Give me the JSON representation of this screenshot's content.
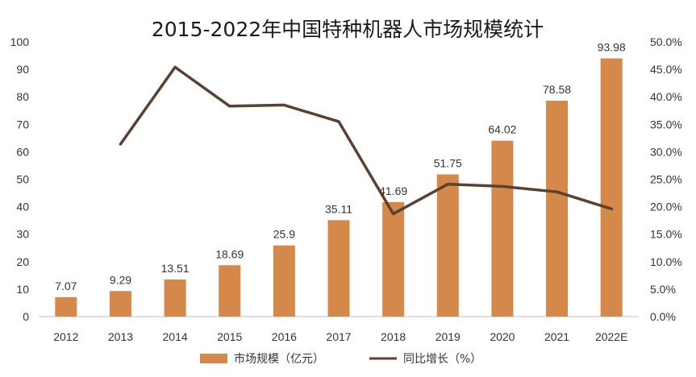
{
  "chart_data": {
    "type": "bar",
    "title": "2015-2022年中国特种机器人市场规模统计",
    "categories": [
      "2012",
      "2013",
      "2014",
      "2015",
      "2016",
      "2017",
      "2018",
      "2019",
      "2020",
      "2021",
      "2022E"
    ],
    "series": [
      {
        "name": "市场规模（亿元）",
        "type": "bar",
        "axis": "left",
        "color": "#D4894A",
        "values": [
          7.07,
          9.29,
          13.51,
          18.69,
          25.9,
          35.11,
          41.69,
          51.75,
          64.02,
          78.58,
          93.98
        ],
        "labels": [
          "7.07",
          "9.29",
          "13.51",
          "18.69",
          "25.9",
          "35.11",
          "41.69",
          "51.75",
          "64.02",
          "78.58",
          "93.98"
        ]
      },
      {
        "name": "同比增长（%）",
        "type": "line",
        "axis": "right",
        "color": "#5A4132",
        "values": [
          null,
          31.4,
          45.4,
          38.3,
          38.5,
          35.5,
          18.7,
          24.1,
          23.7,
          22.7,
          19.6
        ]
      }
    ],
    "y_left": {
      "min": 0,
      "max": 100,
      "ticks": [
        "0",
        "10",
        "20",
        "30",
        "40",
        "50",
        "60",
        "70",
        "80",
        "90",
        "100"
      ]
    },
    "y_right": {
      "min": 0,
      "max": 50,
      "ticks": [
        "0.0%",
        "5.0%",
        "10.0%",
        "15.0%",
        "20.0%",
        "25.0%",
        "30.0%",
        "35.0%",
        "40.0%",
        "45.0%",
        "50.0%"
      ]
    },
    "grid": false,
    "legend_position": "bottom"
  }
}
